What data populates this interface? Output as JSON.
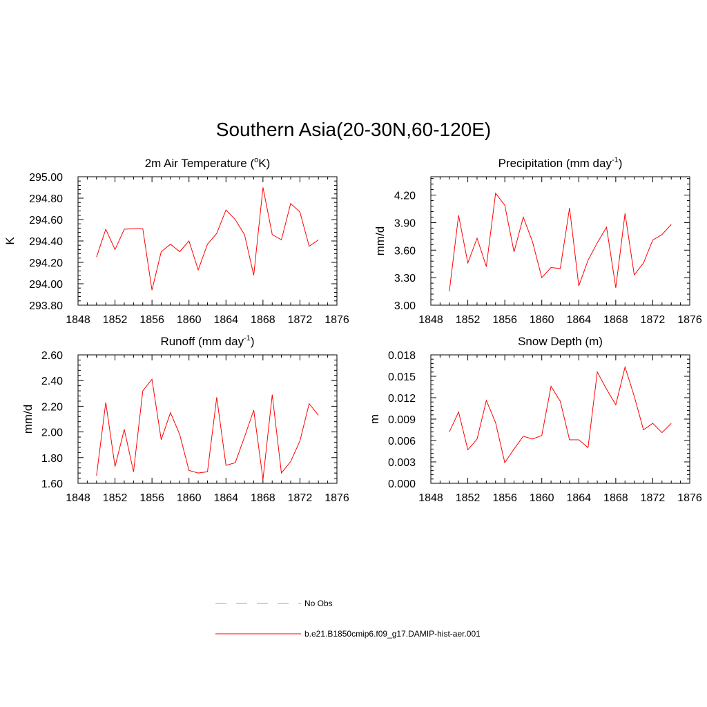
{
  "figure_title": "Southern Asia(20-30N,60-120E)",
  "legend": {
    "entries": [
      {
        "label": "No Obs",
        "color": "#9999ff",
        "style": "dashed"
      },
      {
        "label": "b.e21.B1850cmip6.f09_g17.DAMIP-hist-aer.001",
        "color": "#ff0000",
        "style": "solid"
      }
    ]
  },
  "chart_data": [
    {
      "type": "line",
      "title": "2m Air Temperature (",
      "title_sup": "o",
      "title_after": "K)",
      "ylabel": "K",
      "xlim": [
        1848,
        1876
      ],
      "ylim": [
        293.8,
        295.0
      ],
      "xticks": [
        1848,
        1852,
        1856,
        1860,
        1864,
        1868,
        1872,
        1876
      ],
      "yticks": [
        "293.80",
        "294.00",
        "294.20",
        "294.40",
        "294.60",
        "294.80",
        "295.00"
      ],
      "ytick_values": [
        293.8,
        294.0,
        294.2,
        294.4,
        294.6,
        294.8,
        295.0
      ],
      "color": "#ff0000",
      "x": [
        1850,
        1851,
        1852,
        1853,
        1854,
        1855,
        1856,
        1857,
        1858,
        1859,
        1860,
        1861,
        1862,
        1863,
        1864,
        1865,
        1866,
        1867,
        1868,
        1869,
        1870,
        1871,
        1872,
        1873,
        1874
      ],
      "y": [
        294.25,
        294.51,
        294.32,
        294.51,
        294.515,
        294.515,
        293.94,
        294.3,
        294.37,
        294.3,
        294.4,
        294.13,
        294.37,
        294.47,
        294.69,
        294.6,
        294.46,
        294.08,
        294.9,
        294.46,
        294.41,
        294.75,
        294.67,
        294.35,
        294.41
      ]
    },
    {
      "type": "line",
      "title": "Precipitation (mm day",
      "title_sup": "-1",
      "title_after": ")",
      "ylabel": "mm/d",
      "xlim": [
        1848,
        1876
      ],
      "ylim": [
        3.0,
        4.4
      ],
      "xticks": [
        1848,
        1852,
        1856,
        1860,
        1864,
        1868,
        1872,
        1876
      ],
      "yticks": [
        "3.00",
        "3.30",
        "3.60",
        "3.90",
        "4.20"
      ],
      "ytick_values": [
        3.0,
        3.3,
        3.6,
        3.9,
        4.2
      ],
      "color": "#ff0000",
      "x": [
        1850,
        1851,
        1852,
        1853,
        1854,
        1855,
        1856,
        1857,
        1858,
        1859,
        1860,
        1861,
        1862,
        1863,
        1864,
        1865,
        1866,
        1867,
        1868,
        1869,
        1870,
        1871,
        1872,
        1873,
        1874
      ],
      "y": [
        3.15,
        3.98,
        3.46,
        3.73,
        3.42,
        4.22,
        4.09,
        3.58,
        3.96,
        3.69,
        3.3,
        3.41,
        3.4,
        4.06,
        3.21,
        3.49,
        3.68,
        3.85,
        3.19,
        4.0,
        3.33,
        3.46,
        3.71,
        3.77,
        3.88
      ]
    },
    {
      "type": "line",
      "title": "Runoff (mm day",
      "title_sup": "-1",
      "title_after": ")",
      "ylabel": "mm/d",
      "xlim": [
        1848,
        1876
      ],
      "ylim": [
        1.6,
        2.6
      ],
      "xticks": [
        1848,
        1852,
        1856,
        1860,
        1864,
        1868,
        1872,
        1876
      ],
      "yticks": [
        "1.60",
        "1.80",
        "2.00",
        "2.20",
        "2.40",
        "2.60"
      ],
      "ytick_values": [
        1.6,
        1.8,
        2.0,
        2.2,
        2.4,
        2.6
      ],
      "color": "#ff0000",
      "x": [
        1850,
        1851,
        1852,
        1853,
        1854,
        1855,
        1856,
        1857,
        1858,
        1859,
        1860,
        1861,
        1862,
        1863,
        1864,
        1865,
        1866,
        1867,
        1868,
        1869,
        1870,
        1871,
        1872,
        1873,
        1874
      ],
      "y": [
        1.66,
        2.23,
        1.73,
        2.02,
        1.69,
        2.32,
        2.41,
        1.94,
        2.15,
        1.98,
        1.7,
        1.68,
        1.69,
        2.27,
        1.74,
        1.76,
        1.96,
        2.17,
        1.63,
        2.29,
        1.68,
        1.77,
        1.93,
        2.22,
        2.13
      ]
    },
    {
      "type": "line",
      "title": "Snow Depth (m)",
      "title_sup": "",
      "title_after": "",
      "ylabel": "m",
      "xlim": [
        1848,
        1876
      ],
      "ylim": [
        0.0,
        0.018
      ],
      "xticks": [
        1848,
        1852,
        1856,
        1860,
        1864,
        1868,
        1872,
        1876
      ],
      "yticks": [
        "0.000",
        "0.003",
        "0.006",
        "0.009",
        "0.012",
        "0.015",
        "0.018"
      ],
      "ytick_values": [
        0.0,
        0.003,
        0.006,
        0.009,
        0.012,
        0.015,
        0.018
      ],
      "color": "#ff0000",
      "x": [
        1850,
        1851,
        1852,
        1853,
        1854,
        1855,
        1856,
        1857,
        1858,
        1859,
        1860,
        1861,
        1862,
        1863,
        1864,
        1865,
        1866,
        1867,
        1868,
        1869,
        1870,
        1871,
        1872,
        1873,
        1874
      ],
      "y": [
        0.0072,
        0.01,
        0.0047,
        0.0062,
        0.0116,
        0.0085,
        0.0029,
        0.0048,
        0.0066,
        0.0062,
        0.0067,
        0.0136,
        0.0115,
        0.0061,
        0.0061,
        0.005,
        0.0156,
        0.0132,
        0.011,
        0.0163,
        0.0122,
        0.0075,
        0.0084,
        0.0071,
        0.0084
      ]
    }
  ]
}
